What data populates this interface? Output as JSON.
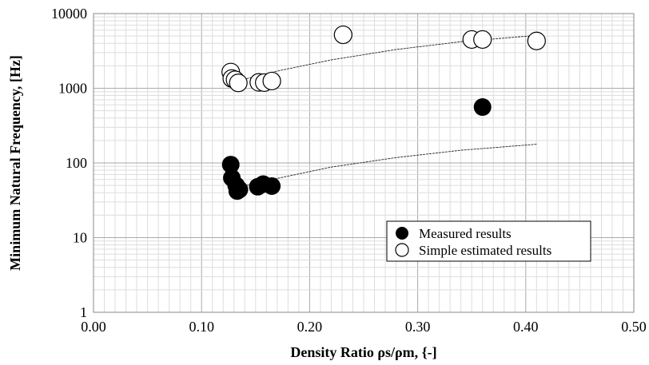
{
  "chart_data": {
    "type": "scatter",
    "xlabel": "Density Ratio ρs/ρm, {-]",
    "ylabel": "Minimum Natural Frequency, [Hz]",
    "xlim": [
      0.0,
      0.5
    ],
    "ylim": [
      1,
      10000
    ],
    "yscale": "log",
    "grid": true,
    "legend_position": "bottom-right",
    "x_ticks": [
      "0.00",
      "0.10",
      "0.20",
      "0.30",
      "0.40",
      "0.50"
    ],
    "y_ticks": [
      "1",
      "10",
      "100",
      "1000",
      "10000"
    ],
    "series": [
      {
        "name": "Measured results",
        "marker": "filled-circle",
        "color": "#000000",
        "points": [
          {
            "x": 0.127,
            "y": 95
          },
          {
            "x": 0.128,
            "y": 63
          },
          {
            "x": 0.132,
            "y": 50
          },
          {
            "x": 0.133,
            "y": 42
          },
          {
            "x": 0.135,
            "y": 44
          },
          {
            "x": 0.152,
            "y": 48
          },
          {
            "x": 0.157,
            "y": 52
          },
          {
            "x": 0.165,
            "y": 49
          },
          {
            "x": 0.36,
            "y": 560
          }
        ]
      },
      {
        "name": "Simple estimated results",
        "marker": "open-circle",
        "color": "#000000",
        "points": [
          {
            "x": 0.127,
            "y": 1650
          },
          {
            "x": 0.128,
            "y": 1350
          },
          {
            "x": 0.131,
            "y": 1300
          },
          {
            "x": 0.134,
            "y": 1180
          },
          {
            "x": 0.153,
            "y": 1200
          },
          {
            "x": 0.158,
            "y": 1190
          },
          {
            "x": 0.165,
            "y": 1250
          },
          {
            "x": 0.231,
            "y": 5200
          },
          {
            "x": 0.35,
            "y": 4500
          },
          {
            "x": 0.36,
            "y": 4500
          },
          {
            "x": 0.41,
            "y": 4300
          }
        ]
      }
    ],
    "trendlines": [
      {
        "series": "Measured results",
        "x": [
          0.133,
          0.17,
          0.22,
          0.28,
          0.34,
          0.41
        ],
        "y": [
          47,
          62,
          88,
          118,
          148,
          178
        ]
      },
      {
        "series": "Simple estimated results",
        "x": [
          0.133,
          0.17,
          0.22,
          0.28,
          0.34,
          0.41
        ],
        "y": [
          1250,
          1700,
          2400,
          3300,
          4200,
          5100
        ]
      }
    ]
  }
}
